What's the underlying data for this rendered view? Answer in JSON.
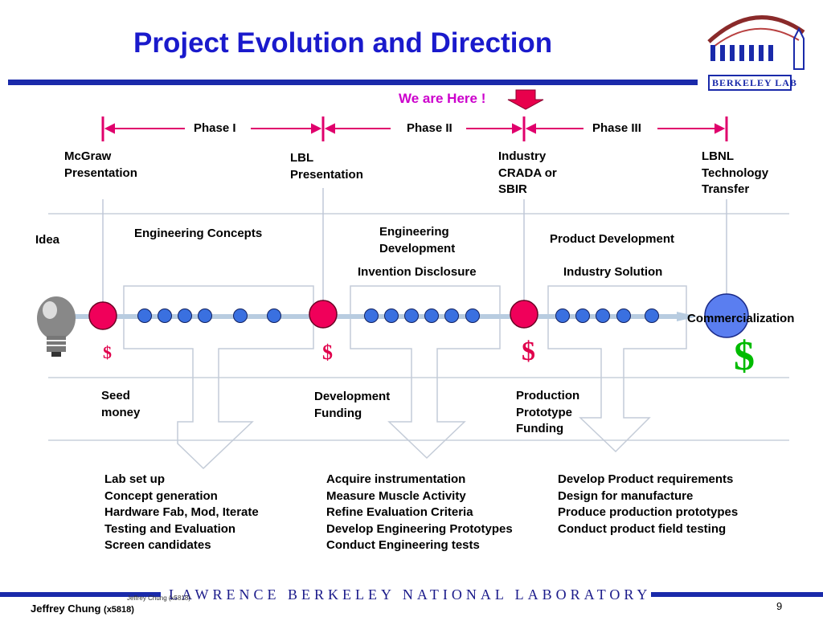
{
  "title": "Project Evolution and Direction",
  "logo": {
    "text": "BERKELEY LAB"
  },
  "we_are_here": "We are Here !",
  "phases": [
    "Phase I",
    "Phase II",
    "Phase III"
  ],
  "milestones": {
    "m1": [
      "McGraw",
      "Presentation"
    ],
    "m2": [
      "LBL",
      "Presentation"
    ],
    "m3": [
      "Industry",
      "CRADA or",
      "SBIR"
    ],
    "m4": [
      "LBNL",
      "Technology",
      "Transfer"
    ]
  },
  "stages": {
    "idea": "Idea",
    "concepts": "Engineering Concepts",
    "development": [
      "Engineering",
      "Development"
    ],
    "product": "Product Development",
    "invention": "Invention Disclosure",
    "solution": "Industry Solution",
    "commercialization": "Commercialization"
  },
  "funding": {
    "seed": [
      "Seed",
      "money"
    ],
    "development": [
      "Development",
      "Funding"
    ],
    "production": [
      "Production",
      "Prototype",
      "Funding"
    ],
    "symbol": "$"
  },
  "tasks": {
    "col1": [
      "Lab set up",
      "Concept generation",
      "Hardware Fab, Mod, Iterate",
      "Testing and Evaluation",
      "Screen candidates"
    ],
    "col2": [
      "Acquire instrumentation",
      "Measure Muscle Activity",
      "Refine Evaluation Criteria",
      "Develop Engineering Prototypes",
      "Conduct Engineering tests"
    ],
    "col3": [
      "Develop Product requirements",
      "Design for manufacture",
      "Produce production prototypes",
      "Conduct product field testing"
    ]
  },
  "footer": {
    "lab_name": "LAWRENCE BERKELEY NATIONAL LABORATORY",
    "author": "Jeffrey Chung",
    "ext": "(x5818)",
    "overlay_text": "Jeffrey Chung (x5818)",
    "page_number": "9"
  },
  "colors": {
    "title": "#1a1acc",
    "phase_line": "#e0006c",
    "milestone_fill": "#f0005a",
    "dot_fill": "#3a70e0",
    "commercial_fill": "#5a7ef0",
    "rule_blue": "#1a2aaa",
    "dollar_green": "#00bb00"
  }
}
